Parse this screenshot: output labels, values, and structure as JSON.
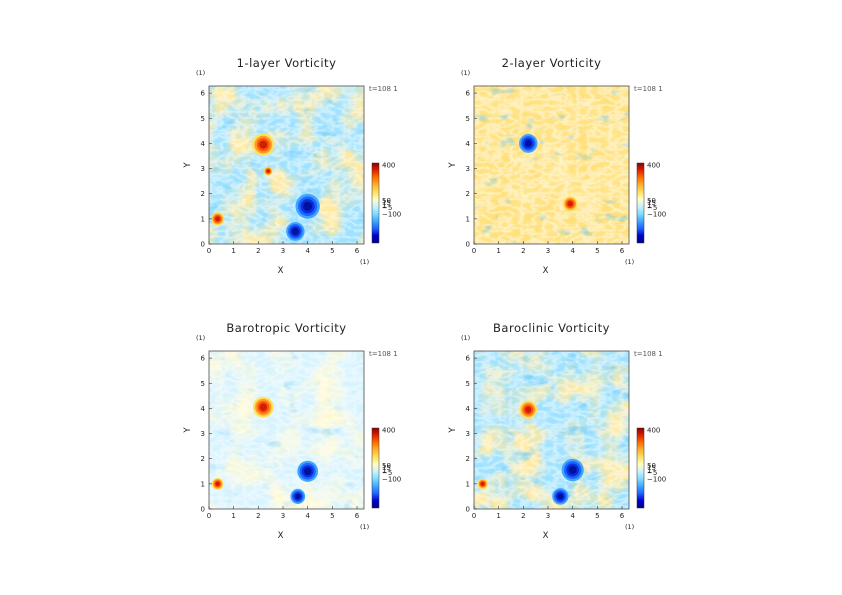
{
  "chart_data": [
    {
      "type": "heatmap",
      "title": "1-layer Vorticity",
      "xlabel": "X",
      "ylabel": "Y",
      "xunit": "(1)",
      "yunit": "(1)",
      "xlim": [
        0,
        6.283
      ],
      "ylim": [
        0,
        6.283
      ],
      "xticks": [
        "0",
        "1",
        "2",
        "3",
        "4",
        "5",
        "6"
      ],
      "yticks": [
        "0",
        "1",
        "2",
        "3",
        "4",
        "5",
        "6"
      ],
      "time_label": "t=108 1",
      "colorbar_labels": [
        "400",
        "50",
        "15",
        "1",
        "−5",
        "−100"
      ],
      "background": "mixed",
      "colormap": [
        "#000088",
        "#0000cc",
        "#1e64ff",
        "#3fa6ff",
        "#7fdcff",
        "#c8f2ff",
        "#ffffc0",
        "#ffe060",
        "#ffb030",
        "#ff7000",
        "#e02000",
        "#880000"
      ],
      "features": [
        {
          "kind": "vortex",
          "sign": "positive",
          "x": 2.2,
          "y": 3.95,
          "r": 0.3
        },
        {
          "kind": "vortex",
          "sign": "negative",
          "x": 4.0,
          "y": 1.5,
          "r": 0.33
        },
        {
          "kind": "vortex",
          "sign": "negative",
          "x": 3.5,
          "y": 0.5,
          "r": 0.25
        },
        {
          "kind": "vortex",
          "sign": "positive",
          "x": 0.35,
          "y": 1.0,
          "r": 0.18
        },
        {
          "kind": "vortex",
          "sign": "positive",
          "x": 2.4,
          "y": 2.9,
          "r": 0.12
        }
      ]
    },
    {
      "type": "heatmap",
      "title": "2-layer Vorticity",
      "xlabel": "X",
      "ylabel": "Y",
      "xunit": "(1)",
      "yunit": "(1)",
      "xlim": [
        0,
        6.283
      ],
      "ylim": [
        0,
        6.283
      ],
      "xticks": [
        "0",
        "1",
        "2",
        "3",
        "4",
        "5",
        "6"
      ],
      "yticks": [
        "0",
        "1",
        "2",
        "3",
        "4",
        "5",
        "6"
      ],
      "time_label": "t=108 1",
      "colorbar_labels": [
        "400",
        "50",
        "15",
        "1",
        "−5",
        "−100"
      ],
      "background": "warm",
      "colormap": [
        "#000088",
        "#0000cc",
        "#1e64ff",
        "#3fa6ff",
        "#7fdcff",
        "#c8f2ff",
        "#ffffc0",
        "#ffe060",
        "#ffb030",
        "#ff7000",
        "#e02000",
        "#880000"
      ],
      "features": [
        {
          "kind": "vortex",
          "sign": "negative",
          "x": 2.2,
          "y": 4.0,
          "r": 0.25
        },
        {
          "kind": "vortex",
          "sign": "positive",
          "x": 3.9,
          "y": 1.6,
          "r": 0.2
        }
      ]
    },
    {
      "type": "heatmap",
      "title": "Barotropic Vorticity",
      "xlabel": "X",
      "ylabel": "Y",
      "xunit": "(1)",
      "yunit": "(1)",
      "xlim": [
        0,
        6.283
      ],
      "ylim": [
        0,
        6.283
      ],
      "xticks": [
        "0",
        "1",
        "2",
        "3",
        "4",
        "5",
        "6"
      ],
      "yticks": [
        "0",
        "1",
        "2",
        "3",
        "4",
        "5",
        "6"
      ],
      "time_label": "t=108 1",
      "colorbar_labels": [
        "400",
        "50",
        "15",
        "1",
        "−5",
        "−100"
      ],
      "background": "light",
      "colormap": [
        "#000088",
        "#0000cc",
        "#1e64ff",
        "#3fa6ff",
        "#7fdcff",
        "#c8f2ff",
        "#ffffc0",
        "#ffe060",
        "#ffb030",
        "#ff7000",
        "#e02000",
        "#880000"
      ],
      "features": [
        {
          "kind": "vortex",
          "sign": "positive",
          "x": 2.2,
          "y": 4.05,
          "r": 0.28
        },
        {
          "kind": "vortex",
          "sign": "negative",
          "x": 4.0,
          "y": 1.5,
          "r": 0.28
        },
        {
          "kind": "vortex",
          "sign": "negative",
          "x": 3.6,
          "y": 0.5,
          "r": 0.2
        },
        {
          "kind": "vortex",
          "sign": "positive",
          "x": 0.35,
          "y": 1.0,
          "r": 0.16
        }
      ]
    },
    {
      "type": "heatmap",
      "title": "Baroclinic Vorticity",
      "xlabel": "X",
      "ylabel": "Y",
      "xunit": "(1)",
      "yunit": "(1)",
      "xlim": [
        0,
        6.283
      ],
      "ylim": [
        0,
        6.283
      ],
      "xticks": [
        "0",
        "1",
        "2",
        "3",
        "4",
        "5",
        "6"
      ],
      "yticks": [
        "0",
        "1",
        "2",
        "3",
        "4",
        "5",
        "6"
      ],
      "time_label": "t=108 1",
      "colorbar_labels": [
        "400",
        "50",
        "15",
        "1",
        "−5",
        "−100"
      ],
      "background": "mixed",
      "colormap": [
        "#000088",
        "#0000cc",
        "#1e64ff",
        "#3fa6ff",
        "#7fdcff",
        "#c8f2ff",
        "#ffffc0",
        "#ffe060",
        "#ffb030",
        "#ff7000",
        "#e02000",
        "#880000"
      ],
      "features": [
        {
          "kind": "vortex",
          "sign": "positive",
          "x": 2.2,
          "y": 3.95,
          "r": 0.24
        },
        {
          "kind": "vortex",
          "sign": "negative",
          "x": 4.0,
          "y": 1.55,
          "r": 0.3
        },
        {
          "kind": "vortex",
          "sign": "negative",
          "x": 3.5,
          "y": 0.5,
          "r": 0.22
        },
        {
          "kind": "vortex",
          "sign": "positive",
          "x": 0.35,
          "y": 1.0,
          "r": 0.14
        }
      ]
    }
  ]
}
